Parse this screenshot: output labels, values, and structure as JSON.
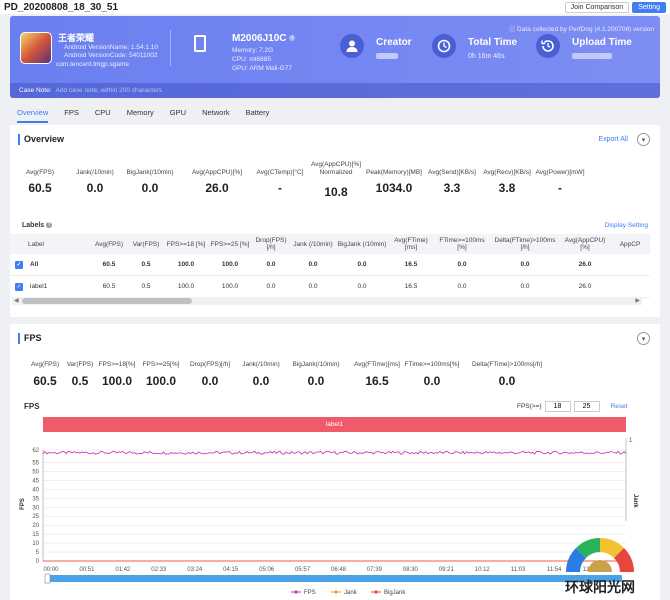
{
  "topbar": {
    "title": "PD_20200808_18_30_51",
    "join_label": "Join Comparison",
    "setting_label": "Setting"
  },
  "banner": {
    "data_note": "Data collected by PerfDog (4.1.200708) version",
    "app": {
      "name": "王者荣耀",
      "version_name": "Android VersionName: 1.54.1.10",
      "version_code": "Android VersionCode: 54011002",
      "package": "com.tencent.tmgp.sgame"
    },
    "device": {
      "name": "M2006J10C",
      "memory": "Memory: 7.2G",
      "cpu": "CPU: mt6885",
      "gpu": "GPU: ARM Mali-G77"
    },
    "creator": {
      "label": "Creator"
    },
    "total_time": {
      "label": "Total Time",
      "value": "0h 16m 46s"
    },
    "upload_time": {
      "label": "Upload Time"
    },
    "case_note": {
      "label": "Case Note:",
      "placeholder": "Add case note, within 200 characters"
    }
  },
  "tabs": [
    "Overview",
    "FPS",
    "CPU",
    "Memory",
    "GPU",
    "Network",
    "Battery"
  ],
  "overview": {
    "title": "Overview",
    "export_label": "Export All",
    "metrics": [
      {
        "label": "Avg(FPS)",
        "value": "60.5"
      },
      {
        "label": "Jank(/10min)",
        "value": "0.0"
      },
      {
        "label": "BigJank(/10min)",
        "value": "0.0"
      },
      {
        "label": "Avg(AppCPU)[%]",
        "value": "26.0"
      },
      {
        "label": "Avg(CTemp)[°C]",
        "value": "-"
      },
      {
        "label": "Avg(AppCPU)[%] Normalized",
        "value": "10.8"
      },
      {
        "label": "Peak(Memory)[MB]",
        "value": "1034.0"
      },
      {
        "label": "Avg(Send)[KB/s]",
        "value": "3.3"
      },
      {
        "label": "Avg(Recv)[KB/s]",
        "value": "3.8"
      },
      {
        "label": "Avg(Power)[mW]",
        "value": "-"
      }
    ],
    "labels_title": "Labels",
    "display_setting": "Display Setting",
    "columns": [
      "Label",
      "Avg(FPS)",
      "Var(FPS)",
      "FPS>=18 [%]",
      "FPS>=25 [%]",
      "Drop(FPS) [/h]",
      "Jank (/10min)",
      "BigJank (/10min)",
      "Avg(FTime) [ms]",
      "FTime>=100ms [%]",
      "Delta(FTime)>100ms [/h]",
      "Avg(AppCPU) [%]",
      "AppCP"
    ],
    "rows": [
      [
        "All",
        "60.5",
        "0.5",
        "100.0",
        "100.0",
        "0.0",
        "0.0",
        "0.0",
        "16.5",
        "0.0",
        "0.0",
        "26.0",
        ""
      ],
      [
        "label1",
        "60.5",
        "0.5",
        "100.0",
        "100.0",
        "0.0",
        "0.0",
        "0.0",
        "16.5",
        "0.0",
        "0.0",
        "26.0",
        ""
      ]
    ]
  },
  "fps": {
    "title": "FPS",
    "metrics": [
      {
        "label": "Avg(FPS)",
        "value": "60.5"
      },
      {
        "label": "Var(FPS)",
        "value": "0.5"
      },
      {
        "label": "FPS>=18[%]",
        "value": "100.0"
      },
      {
        "label": "FPS>=25[%]",
        "value": "100.0"
      },
      {
        "label": "Drop(FPS)[/h]",
        "value": "0.0"
      },
      {
        "label": "Jank(/10min)",
        "value": "0.0"
      },
      {
        "label": "BigJank(/10min)",
        "value": "0.0"
      },
      {
        "label": "Avg(FTime)[ms]",
        "value": "16.5"
      },
      {
        "label": "FTime>=100ms[%]",
        "value": "0.0"
      },
      {
        "label": "Delta(FTime)>100ms[/h]",
        "value": "0.0"
      }
    ],
    "chart_label": "FPS",
    "range_label": "FPS(>=)",
    "range_low": "18",
    "range_high": "25",
    "reset_label": "Reset",
    "label_bar": "label1"
  },
  "chart_data": {
    "type": "line",
    "ylabel": "FPS",
    "y2label": "Jank",
    "ylim": [
      0,
      62
    ],
    "yticks": [
      0,
      5,
      10,
      15,
      20,
      25,
      30,
      35,
      40,
      45,
      50,
      55,
      62
    ],
    "y2ticks": [
      1
    ],
    "x": [
      "00:00",
      "00:51",
      "01:42",
      "02:33",
      "03:24",
      "04:15",
      "05:06",
      "05:57",
      "06:48",
      "07:39",
      "08:30",
      "09:21",
      "10:12",
      "11:03",
      "11:54",
      "12:45",
      "13:3"
    ],
    "series": [
      {
        "name": "FPS",
        "color": "#c23fb8",
        "level": 60.5
      },
      {
        "name": "Jank",
        "color": "#f39a3c",
        "level": 0
      },
      {
        "name": "BigJank",
        "color": "#e8463c",
        "level": 0
      }
    ]
  },
  "watermark": {
    "text": "环球阳光网"
  }
}
